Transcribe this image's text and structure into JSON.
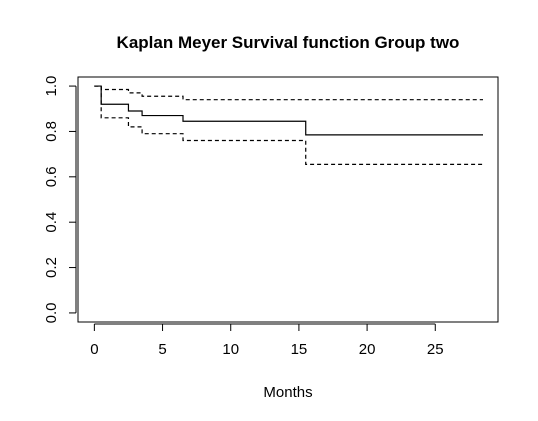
{
  "chart_data": {
    "type": "line",
    "title": "Kaplan Meyer Survival function Group two",
    "xlabel": "Months",
    "ylabel": "",
    "xlim": [
      -1.2,
      29.6
    ],
    "ylim": [
      -0.04,
      1.04
    ],
    "x_ticks": [
      0,
      5,
      10,
      15,
      20,
      25
    ],
    "y_ticks": [
      0.0,
      0.2,
      0.4,
      0.6,
      0.8,
      1.0
    ],
    "x_tick_labels": [
      "0",
      "5",
      "10",
      "15",
      "20",
      "25"
    ],
    "y_tick_labels": [
      "0.0",
      "0.2",
      "0.4",
      "0.6",
      "0.8",
      "1.0"
    ],
    "grid": false,
    "series": [
      {
        "style": "solid",
        "step": true,
        "x": [
          0,
          0.5,
          2.5,
          3.5,
          6.5,
          15.5,
          28.5
        ],
        "y": [
          1.0,
          0.92,
          0.89,
          0.87,
          0.845,
          0.785,
          0.785
        ]
      },
      {
        "style": "dashed",
        "step": true,
        "x": [
          0,
          0.5,
          2.5,
          3.5,
          6.5,
          15.5,
          28.5
        ],
        "y": [
          1.0,
          0.985,
          0.97,
          0.955,
          0.94,
          0.94,
          0.94
        ]
      },
      {
        "style": "dashed",
        "step": true,
        "x": [
          0,
          0.5,
          2.5,
          3.5,
          6.5,
          15.5,
          28.5
        ],
        "y": [
          1.0,
          0.86,
          0.82,
          0.79,
          0.76,
          0.655,
          0.655
        ]
      }
    ]
  }
}
